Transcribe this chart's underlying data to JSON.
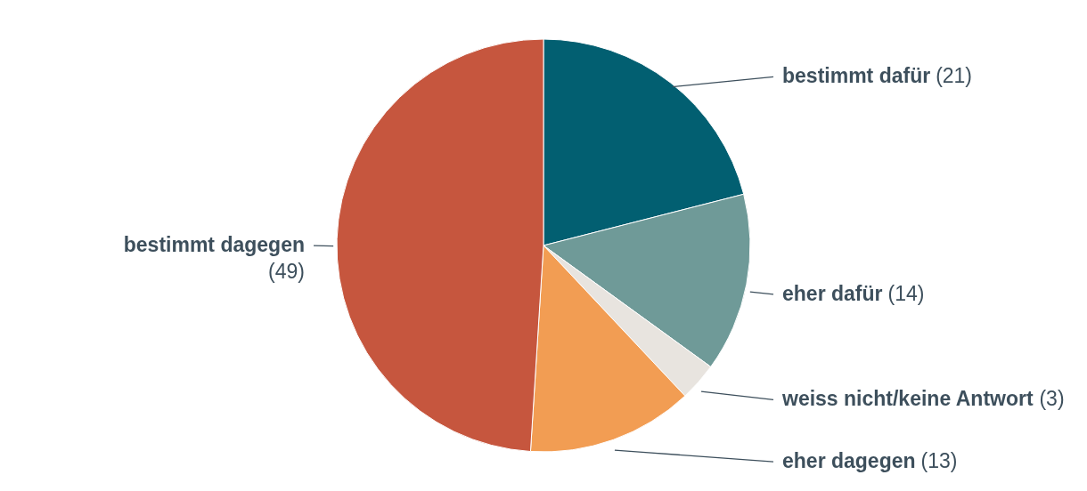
{
  "chart_data": {
    "type": "pie",
    "categories": [
      "bestimmt dafür",
      "eher dafür",
      "weiss nicht/keine Antwort",
      "eher dagegen",
      "bestimmt dagegen"
    ],
    "values": [
      21,
      14,
      3,
      13,
      49
    ],
    "value_labels": [
      "(21)",
      "(14)",
      "(3)",
      "(13)",
      "(49)"
    ],
    "colors": [
      "#025f71",
      "#6f9a98",
      "#e8e4df",
      "#f29d53",
      "#c6563e"
    ]
  }
}
